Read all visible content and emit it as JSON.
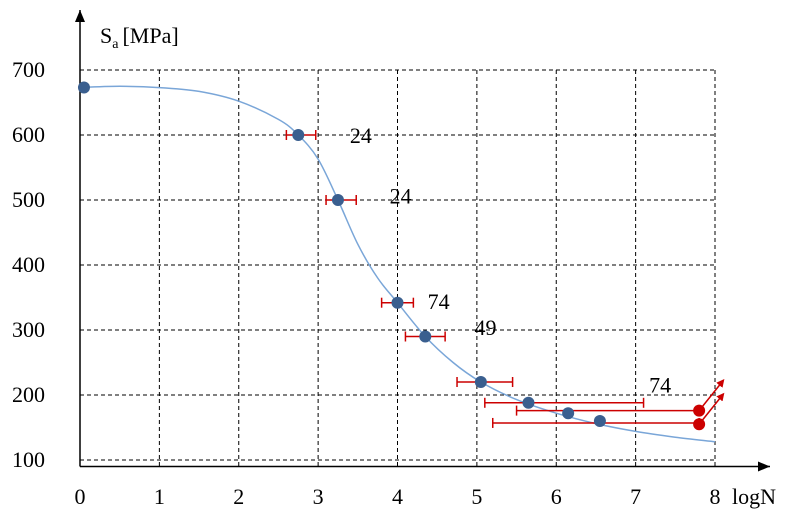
{
  "chart_data": {
    "type": "scatter",
    "title": "",
    "xlabel": "logN",
    "ylabel_main": "S",
    "ylabel_sub": "a",
    "ylabel_unit": "[MPa]",
    "xlim": [
      0,
      8
    ],
    "ylim": [
      90,
      720
    ],
    "xticks": [
      0,
      1,
      2,
      3,
      4,
      5,
      6,
      7,
      8
    ],
    "xtick_labels": [
      "0",
      "1",
      "2",
      "3",
      "4",
      "5",
      "6",
      "7",
      "8"
    ],
    "yticks": [
      100,
      200,
      300,
      400,
      500,
      600,
      700
    ],
    "ytick_labels": [
      "100",
      "200",
      "300",
      "400",
      "500",
      "600",
      "700"
    ],
    "grid": true,
    "grid_style": "dashed",
    "colors": {
      "points": "#3a5f8f",
      "runouts": "#cc0000",
      "error_bars": "#cc0000",
      "curve": "#7aa6d8",
      "grid": "#000000",
      "axes": "#000000"
    },
    "points": [
      {
        "x": 0.05,
        "y": 673
      },
      {
        "x": 2.75,
        "y": 600,
        "xerr": [
          2.6,
          2.97
        ]
      },
      {
        "x": 3.25,
        "y": 500,
        "xerr": [
          3.1,
          3.48
        ]
      },
      {
        "x": 4.0,
        "y": 342,
        "xerr": [
          3.8,
          4.2
        ]
      },
      {
        "x": 4.35,
        "y": 290,
        "xerr": [
          4.1,
          4.6
        ]
      },
      {
        "x": 5.05,
        "y": 220,
        "xerr": [
          4.75,
          5.45
        ]
      },
      {
        "x": 5.65,
        "y": 188
      },
      {
        "x": 6.15,
        "y": 172
      },
      {
        "x": 6.55,
        "y": 160
      }
    ],
    "runouts": [
      {
        "x": 7.8,
        "y": 176
      },
      {
        "x": 7.8,
        "y": 155
      }
    ],
    "scatter_bars": [
      {
        "y": 188,
        "x_from": 5.1,
        "x_to": 7.1
      },
      {
        "y": 176,
        "x_from": 5.5,
        "x_to": 7.8
      },
      {
        "y": 157,
        "x_from": 5.2,
        "x_to": 7.8
      }
    ],
    "curve": [
      {
        "x": 0.0,
        "y": 673
      },
      {
        "x": 0.5,
        "y": 675
      },
      {
        "x": 1.0,
        "y": 673
      },
      {
        "x": 1.5,
        "y": 667
      },
      {
        "x": 2.0,
        "y": 652
      },
      {
        "x": 2.5,
        "y": 624
      },
      {
        "x": 2.75,
        "y": 600
      },
      {
        "x": 3.0,
        "y": 563
      },
      {
        "x": 3.25,
        "y": 500
      },
      {
        "x": 3.5,
        "y": 432
      },
      {
        "x": 3.75,
        "y": 380
      },
      {
        "x": 4.0,
        "y": 342
      },
      {
        "x": 4.35,
        "y": 290
      },
      {
        "x": 4.7,
        "y": 250
      },
      {
        "x": 5.05,
        "y": 220
      },
      {
        "x": 5.5,
        "y": 193
      },
      {
        "x": 6.0,
        "y": 172
      },
      {
        "x": 6.5,
        "y": 156
      },
      {
        "x": 7.0,
        "y": 144
      },
      {
        "x": 7.5,
        "y": 135
      },
      {
        "x": 8.0,
        "y": 128
      }
    ],
    "annotations": [
      {
        "text": "24",
        "x": 3.4,
        "y": 600
      },
      {
        "text": "24",
        "x": 3.9,
        "y": 507
      },
      {
        "text": "74",
        "x": 4.38,
        "y": 345
      },
      {
        "text": "49",
        "x": 4.97,
        "y": 305
      },
      {
        "text": "74",
        "x": 7.17,
        "y": 216
      }
    ]
  }
}
